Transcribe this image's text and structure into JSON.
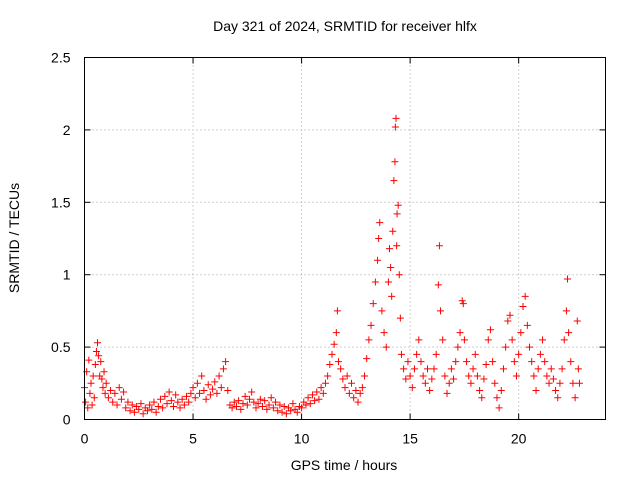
{
  "chart_data": {
    "type": "scatter",
    "title": "Day 321 of 2024, SRMTID for receiver hlfx",
    "xlabel": "GPS time / hours",
    "ylabel": "SRMTID / TECUs",
    "xlim": [
      0,
      24
    ],
    "ylim": [
      0,
      2.5
    ],
    "xticks": [
      0,
      5,
      10,
      15,
      20
    ],
    "xtick_labels": [
      "0",
      "5",
      "10",
      "15",
      "20"
    ],
    "yticks": [
      0,
      0.5,
      1,
      1.5,
      2,
      2.5
    ],
    "ytick_labels": [
      "0",
      "0.5",
      "1",
      "1.5",
      "2",
      "2.5"
    ],
    "grid": true,
    "marker": "+",
    "series": [
      {
        "name": "SRMTID",
        "color": "#ff0000",
        "points": [
          [
            0.0,
            0.22
          ],
          [
            0.05,
            0.12
          ],
          [
            0.1,
            0.33
          ],
          [
            0.15,
            0.08
          ],
          [
            0.2,
            0.41
          ],
          [
            0.25,
            0.18
          ],
          [
            0.3,
            0.25
          ],
          [
            0.35,
            0.1
          ],
          [
            0.4,
            0.3
          ],
          [
            0.45,
            0.15
          ],
          [
            0.5,
            0.38
          ],
          [
            0.55,
            0.47
          ],
          [
            0.6,
            0.53
          ],
          [
            0.65,
            0.44
          ],
          [
            0.7,
            0.3
          ],
          [
            0.75,
            0.4
          ],
          [
            0.8,
            0.28
          ],
          [
            0.85,
            0.22
          ],
          [
            0.9,
            0.33
          ],
          [
            0.95,
            0.18
          ],
          [
            1.0,
            0.25
          ],
          [
            1.1,
            0.15
          ],
          [
            1.2,
            0.2
          ],
          [
            1.3,
            0.12
          ],
          [
            1.4,
            0.18
          ],
          [
            1.5,
            0.1
          ],
          [
            1.6,
            0.22
          ],
          [
            1.7,
            0.14
          ],
          [
            1.8,
            0.19
          ],
          [
            1.9,
            0.08
          ],
          [
            2.0,
            0.12
          ],
          [
            2.1,
            0.06
          ],
          [
            2.2,
            0.1
          ],
          [
            2.3,
            0.05
          ],
          [
            2.4,
            0.09
          ],
          [
            2.5,
            0.07
          ],
          [
            2.6,
            0.11
          ],
          [
            2.7,
            0.04
          ],
          [
            2.8,
            0.08
          ],
          [
            2.9,
            0.06
          ],
          [
            3.0,
            0.1
          ],
          [
            3.1,
            0.07
          ],
          [
            3.2,
            0.12
          ],
          [
            3.3,
            0.05
          ],
          [
            3.4,
            0.09
          ],
          [
            3.5,
            0.14
          ],
          [
            3.6,
            0.08
          ],
          [
            3.7,
            0.16
          ],
          [
            3.8,
            0.11
          ],
          [
            3.9,
            0.19
          ],
          [
            4.0,
            0.13
          ],
          [
            4.1,
            0.09
          ],
          [
            4.2,
            0.17
          ],
          [
            4.3,
            0.12
          ],
          [
            4.4,
            0.08
          ],
          [
            4.5,
            0.14
          ],
          [
            4.6,
            0.1
          ],
          [
            4.7,
            0.16
          ],
          [
            4.8,
            0.12
          ],
          [
            4.9,
            0.18
          ],
          [
            5.0,
            0.22
          ],
          [
            5.1,
            0.15
          ],
          [
            5.2,
            0.25
          ],
          [
            5.3,
            0.18
          ],
          [
            5.4,
            0.3
          ],
          [
            5.5,
            0.2
          ],
          [
            5.6,
            0.14
          ],
          [
            5.7,
            0.24
          ],
          [
            5.8,
            0.17
          ],
          [
            5.9,
            0.21
          ],
          [
            6.0,
            0.26
          ],
          [
            6.1,
            0.18
          ],
          [
            6.2,
            0.3
          ],
          [
            6.3,
            0.22
          ],
          [
            6.4,
            0.35
          ],
          [
            6.5,
            0.4
          ],
          [
            6.6,
            0.2
          ],
          [
            6.7,
            0.1
          ],
          [
            6.8,
            0.08
          ],
          [
            6.9,
            0.12
          ],
          [
            7.0,
            0.09
          ],
          [
            7.1,
            0.13
          ],
          [
            7.2,
            0.07
          ],
          [
            7.3,
            0.11
          ],
          [
            7.4,
            0.16
          ],
          [
            7.5,
            0.1
          ],
          [
            7.6,
            0.14
          ],
          [
            7.7,
            0.19
          ],
          [
            7.8,
            0.12
          ],
          [
            7.9,
            0.08
          ],
          [
            8.0,
            0.11
          ],
          [
            8.1,
            0.14
          ],
          [
            8.2,
            0.09
          ],
          [
            8.3,
            0.13
          ],
          [
            8.4,
            0.07
          ],
          [
            8.5,
            0.1
          ],
          [
            8.6,
            0.15
          ],
          [
            8.7,
            0.08
          ],
          [
            8.8,
            0.12
          ],
          [
            8.9,
            0.06
          ],
          [
            9.0,
            0.1
          ],
          [
            9.1,
            0.05
          ],
          [
            9.2,
            0.09
          ],
          [
            9.3,
            0.04
          ],
          [
            9.4,
            0.08
          ],
          [
            9.5,
            0.06
          ],
          [
            9.6,
            0.11
          ],
          [
            9.7,
            0.07
          ],
          [
            9.8,
            0.05
          ],
          [
            9.9,
            0.09
          ],
          [
            10.0,
            0.08
          ],
          [
            10.1,
            0.12
          ],
          [
            10.2,
            0.1
          ],
          [
            10.3,
            0.15
          ],
          [
            10.4,
            0.11
          ],
          [
            10.5,
            0.17
          ],
          [
            10.6,
            0.13
          ],
          [
            10.7,
            0.19
          ],
          [
            10.8,
            0.14
          ],
          [
            10.9,
            0.22
          ],
          [
            11.0,
            0.18
          ],
          [
            11.1,
            0.25
          ],
          [
            11.2,
            0.3
          ],
          [
            11.3,
            0.38
          ],
          [
            11.4,
            0.45
          ],
          [
            11.5,
            0.52
          ],
          [
            11.6,
            0.6
          ],
          [
            11.65,
            0.75
          ],
          [
            11.7,
            0.4
          ],
          [
            11.8,
            0.35
          ],
          [
            11.9,
            0.28
          ],
          [
            12.0,
            0.22
          ],
          [
            12.1,
            0.3
          ],
          [
            12.2,
            0.18
          ],
          [
            12.3,
            0.25
          ],
          [
            12.4,
            0.15
          ],
          [
            12.5,
            0.2
          ],
          [
            12.6,
            0.12
          ],
          [
            12.7,
            0.18
          ],
          [
            12.8,
            0.22
          ],
          [
            12.9,
            0.3
          ],
          [
            13.0,
            0.42
          ],
          [
            13.1,
            0.55
          ],
          [
            13.2,
            0.65
          ],
          [
            13.3,
            0.8
          ],
          [
            13.4,
            0.95
          ],
          [
            13.5,
            1.1
          ],
          [
            13.55,
            1.25
          ],
          [
            13.6,
            1.36
          ],
          [
            13.7,
            0.75
          ],
          [
            13.8,
            0.6
          ],
          [
            13.9,
            0.5
          ],
          [
            14.0,
            0.95
          ],
          [
            14.05,
            1.18
          ],
          [
            14.1,
            1.05
          ],
          [
            14.15,
            0.85
          ],
          [
            14.2,
            1.3
          ],
          [
            14.25,
            1.65
          ],
          [
            14.3,
            1.78
          ],
          [
            14.32,
            2.02
          ],
          [
            14.35,
            2.08
          ],
          [
            14.38,
            1.2
          ],
          [
            14.4,
            1.42
          ],
          [
            14.45,
            1.48
          ],
          [
            14.5,
            1.0
          ],
          [
            14.55,
            0.7
          ],
          [
            14.6,
            0.45
          ],
          [
            14.7,
            0.35
          ],
          [
            14.8,
            0.28
          ],
          [
            14.9,
            0.4
          ],
          [
            15.0,
            0.3
          ],
          [
            15.1,
            0.22
          ],
          [
            15.2,
            0.35
          ],
          [
            15.3,
            0.45
          ],
          [
            15.4,
            0.55
          ],
          [
            15.5,
            0.4
          ],
          [
            15.6,
            0.3
          ],
          [
            15.7,
            0.25
          ],
          [
            15.8,
            0.35
          ],
          [
            15.9,
            0.2
          ],
          [
            16.0,
            0.28
          ],
          [
            16.1,
            0.35
          ],
          [
            16.2,
            0.45
          ],
          [
            16.3,
            0.93
          ],
          [
            16.35,
            1.2
          ],
          [
            16.4,
            0.75
          ],
          [
            16.5,
            0.55
          ],
          [
            16.6,
            0.3
          ],
          [
            16.7,
            0.18
          ],
          [
            16.8,
            0.25
          ],
          [
            16.9,
            0.35
          ],
          [
            17.0,
            0.28
          ],
          [
            17.1,
            0.4
          ],
          [
            17.2,
            0.5
          ],
          [
            17.3,
            0.6
          ],
          [
            17.4,
            0.82
          ],
          [
            17.45,
            0.8
          ],
          [
            17.5,
            0.55
          ],
          [
            17.6,
            0.4
          ],
          [
            17.7,
            0.3
          ],
          [
            17.8,
            0.25
          ],
          [
            17.9,
            0.35
          ],
          [
            18.0,
            0.45
          ],
          [
            18.1,
            0.3
          ],
          [
            18.2,
            0.2
          ],
          [
            18.3,
            0.15
          ],
          [
            18.4,
            0.28
          ],
          [
            18.5,
            0.38
          ],
          [
            18.6,
            0.55
          ],
          [
            18.7,
            0.62
          ],
          [
            18.8,
            0.4
          ],
          [
            18.9,
            0.25
          ],
          [
            19.0,
            0.15
          ],
          [
            19.1,
            0.08
          ],
          [
            19.2,
            0.2
          ],
          [
            19.3,
            0.35
          ],
          [
            19.4,
            0.5
          ],
          [
            19.5,
            0.68
          ],
          [
            19.6,
            0.72
          ],
          [
            19.7,
            0.55
          ],
          [
            19.8,
            0.4
          ],
          [
            19.9,
            0.3
          ],
          [
            20.0,
            0.45
          ],
          [
            20.1,
            0.6
          ],
          [
            20.2,
            0.78
          ],
          [
            20.3,
            0.85
          ],
          [
            20.4,
            0.65
          ],
          [
            20.5,
            0.5
          ],
          [
            20.6,
            0.4
          ],
          [
            20.7,
            0.3
          ],
          [
            20.8,
            0.2
          ],
          [
            20.9,
            0.35
          ],
          [
            21.0,
            0.45
          ],
          [
            21.1,
            0.55
          ],
          [
            21.2,
            0.4
          ],
          [
            21.3,
            0.3
          ],
          [
            21.4,
            0.25
          ],
          [
            21.5,
            0.35
          ],
          [
            21.6,
            0.28
          ],
          [
            21.7,
            0.2
          ],
          [
            21.8,
            0.15
          ],
          [
            21.9,
            0.25
          ],
          [
            22.0,
            0.35
          ],
          [
            22.1,
            0.55
          ],
          [
            22.2,
            0.75
          ],
          [
            22.25,
            0.97
          ],
          [
            22.3,
            0.6
          ],
          [
            22.4,
            0.4
          ],
          [
            22.5,
            0.25
          ],
          [
            22.6,
            0.15
          ],
          [
            22.7,
            0.68
          ],
          [
            22.75,
            0.35
          ],
          [
            22.8,
            0.25
          ]
        ]
      }
    ]
  }
}
